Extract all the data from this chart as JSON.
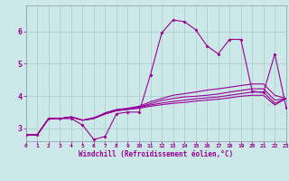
{
  "xlabel": "Windchill (Refroidissement éolien,°C)",
  "bg_color": "#cce8e8",
  "grid_color": "#aacccc",
  "line_color": "#990099",
  "xlim": [
    0,
    23
  ],
  "ylim": [
    2.6,
    6.8
  ],
  "xticks": [
    0,
    1,
    2,
    3,
    4,
    5,
    6,
    7,
    8,
    9,
    10,
    11,
    12,
    13,
    14,
    15,
    16,
    17,
    18,
    19,
    20,
    21,
    22,
    23
  ],
  "yticks": [
    3,
    4,
    5,
    6
  ],
  "series0": [
    2.8,
    2.8,
    3.3,
    3.3,
    3.3,
    3.1,
    2.65,
    2.75,
    3.45,
    3.5,
    3.5,
    4.65,
    5.95,
    6.35,
    6.3,
    6.05,
    5.55,
    5.3,
    5.75,
    5.75,
    4.15,
    4.1,
    5.3,
    3.65
  ],
  "series1": [
    2.8,
    2.8,
    3.3,
    3.3,
    3.35,
    3.25,
    3.3,
    3.48,
    3.58,
    3.62,
    3.68,
    3.82,
    3.92,
    4.02,
    4.07,
    4.12,
    4.18,
    4.22,
    4.27,
    4.32,
    4.37,
    4.37,
    4.02,
    3.92
  ],
  "series2": [
    2.8,
    2.8,
    3.3,
    3.3,
    3.35,
    3.25,
    3.33,
    3.46,
    3.56,
    3.6,
    3.66,
    3.76,
    3.86,
    3.92,
    3.97,
    3.99,
    4.02,
    4.06,
    4.12,
    4.17,
    4.22,
    4.22,
    3.87,
    3.92
  ],
  "series3": [
    2.8,
    2.8,
    3.3,
    3.3,
    3.35,
    3.25,
    3.31,
    3.45,
    3.55,
    3.59,
    3.64,
    3.72,
    3.78,
    3.83,
    3.87,
    3.91,
    3.94,
    3.97,
    4.02,
    4.07,
    4.12,
    4.12,
    3.77,
    3.92
  ],
  "series4": [
    2.8,
    2.8,
    3.3,
    3.3,
    3.35,
    3.25,
    3.3,
    3.44,
    3.54,
    3.58,
    3.62,
    3.68,
    3.73,
    3.77,
    3.8,
    3.84,
    3.87,
    3.9,
    3.94,
    3.99,
    4.02,
    4.02,
    3.72,
    3.92
  ]
}
